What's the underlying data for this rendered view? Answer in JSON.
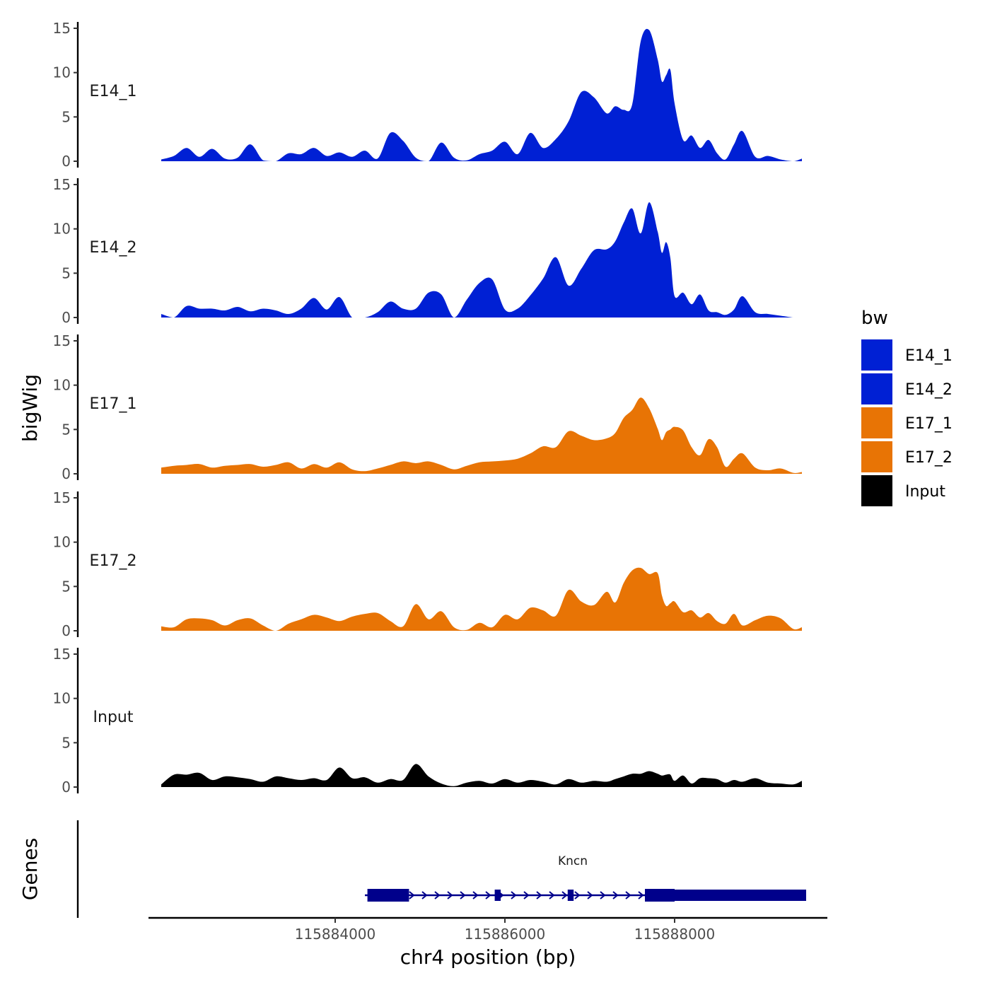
{
  "chart_data": {
    "type": "area",
    "xlabel": "chr4 position (bp)",
    "ylabel": "bigWig",
    "genes_label": "Genes",
    "xlim": [
      115881800,
      115889800
    ],
    "ylim": [
      0,
      15
    ],
    "yticks": [
      0,
      5,
      10,
      15
    ],
    "xticks": [
      {
        "value": 115884000,
        "label": "115884000"
      },
      {
        "value": 115886000,
        "label": "115886000"
      },
      {
        "value": 115888000,
        "label": "115888000"
      }
    ],
    "legend": {
      "title": "bw",
      "position": "right",
      "entries": [
        {
          "label": "E14_1",
          "color": "#0020D4"
        },
        {
          "label": "E14_2",
          "color": "#0020D4"
        },
        {
          "label": "E17_1",
          "color": "#E87405"
        },
        {
          "label": "E17_2",
          "color": "#E87405"
        },
        {
          "label": "Input",
          "color": "#000000"
        }
      ]
    },
    "series": [
      {
        "name": "E14_1",
        "color": "#0020D4",
        "x": [
          115881950,
          115882100,
          115882250,
          115882400,
          115882550,
          115882700,
          115882850,
          115883000,
          115883150,
          115883300,
          115883450,
          115883600,
          115883750,
          115883900,
          115884050,
          115884200,
          115884350,
          115884500,
          115884650,
          115884800,
          115884950,
          115885100,
          115885250,
          115885400,
          115885550,
          115885700,
          115885850,
          115886000,
          115886150,
          115886300,
          115886450,
          115886600,
          115886750,
          115886900,
          115887050,
          115887200,
          115887300,
          115887400,
          115887500,
          115887600,
          115887700,
          115887800,
          115887850,
          115887900,
          115887950,
          115888000,
          115888100,
          115888200,
          115888300,
          115888400,
          115888500,
          115888600,
          115888700,
          115888800,
          115888950,
          115889100,
          115889250,
          115889400,
          115889500
        ],
        "values": [
          0.2,
          0.6,
          1.5,
          0.5,
          1.4,
          0.3,
          0.4,
          1.9,
          0.1,
          0.0,
          0.9,
          0.8,
          1.5,
          0.6,
          1.0,
          0.5,
          1.2,
          0.3,
          3.2,
          2.3,
          0.4,
          0.0,
          2.1,
          0.4,
          0.1,
          0.8,
          1.2,
          2.2,
          0.8,
          3.2,
          1.5,
          2.5,
          4.5,
          7.8,
          7.2,
          5.4,
          6.2,
          5.8,
          6.4,
          13.5,
          14.8,
          11.5,
          9.0,
          9.7,
          10.3,
          6.5,
          2.4,
          2.9,
          1.5,
          2.4,
          0.9,
          0.2,
          1.9,
          3.4,
          0.5,
          0.6,
          0.2,
          0.0,
          0.3
        ]
      },
      {
        "name": "E14_2",
        "color": "#0020D4",
        "x": [
          115881950,
          115882100,
          115882250,
          115882400,
          115882550,
          115882700,
          115882850,
          115883000,
          115883150,
          115883300,
          115883450,
          115883600,
          115883750,
          115883900,
          115884050,
          115884200,
          115884350,
          115884500,
          115884650,
          115884800,
          115884950,
          115885100,
          115885250,
          115885400,
          115885550,
          115885700,
          115885850,
          115886000,
          115886150,
          115886300,
          115886450,
          115886600,
          115886750,
          115886900,
          115887050,
          115887200,
          115887300,
          115887400,
          115887500,
          115887600,
          115887700,
          115887800,
          115887850,
          115887900,
          115887950,
          115888000,
          115888100,
          115888200,
          115888300,
          115888400,
          115888500,
          115888600,
          115888700,
          115888800,
          115888950,
          115889100,
          115889250,
          115889400,
          115889500
        ],
        "values": [
          0.4,
          0.0,
          1.3,
          1.0,
          1.0,
          0.8,
          1.2,
          0.7,
          1.0,
          0.8,
          0.4,
          1.0,
          2.2,
          0.9,
          2.3,
          0.0,
          0.0,
          0.6,
          1.8,
          1.0,
          1.0,
          2.8,
          2.6,
          0.0,
          2.0,
          3.9,
          4.3,
          0.9,
          1.0,
          2.5,
          4.4,
          6.8,
          3.6,
          5.5,
          7.6,
          7.7,
          8.6,
          10.7,
          12.3,
          9.5,
          13.0,
          9.7,
          7.3,
          8.5,
          6.7,
          2.4,
          2.8,
          1.5,
          2.6,
          0.8,
          0.6,
          0.3,
          0.9,
          2.4,
          0.6,
          0.4,
          0.2,
          0.0,
          0.0
        ]
      },
      {
        "name": "E17_1",
        "color": "#E87405",
        "x": [
          115881950,
          115882100,
          115882250,
          115882400,
          115882550,
          115882700,
          115882850,
          115883000,
          115883150,
          115883300,
          115883450,
          115883600,
          115883750,
          115883900,
          115884050,
          115884200,
          115884350,
          115884500,
          115884650,
          115884800,
          115884950,
          115885100,
          115885250,
          115885400,
          115885550,
          115885700,
          115885850,
          115886000,
          115886150,
          115886300,
          115886450,
          115886600,
          115886750,
          115886900,
          115887050,
          115887200,
          115887300,
          115887400,
          115887500,
          115887600,
          115887700,
          115887800,
          115887850,
          115887900,
          115887950,
          115888000,
          115888100,
          115888200,
          115888300,
          115888400,
          115888500,
          115888600,
          115888700,
          115888800,
          115888950,
          115889100,
          115889250,
          115889400,
          115889500
        ],
        "values": [
          0.7,
          0.9,
          1.0,
          1.1,
          0.7,
          0.9,
          1.0,
          1.1,
          0.8,
          1.0,
          1.3,
          0.6,
          1.1,
          0.7,
          1.3,
          0.5,
          0.3,
          0.6,
          1.0,
          1.4,
          1.2,
          1.4,
          1.0,
          0.5,
          0.9,
          1.3,
          1.4,
          1.5,
          1.7,
          2.3,
          3.1,
          3.0,
          4.8,
          4.3,
          3.8,
          4.0,
          4.6,
          6.3,
          7.2,
          8.6,
          7.4,
          5.1,
          3.8,
          4.7,
          5.0,
          5.3,
          4.9,
          3.0,
          2.1,
          3.9,
          3.0,
          0.8,
          1.7,
          2.3,
          0.7,
          0.4,
          0.6,
          0.1,
          0.2
        ]
      },
      {
        "name": "E17_2",
        "color": "#E87405",
        "x": [
          115881950,
          115882100,
          115882250,
          115882400,
          115882550,
          115882700,
          115882850,
          115883000,
          115883150,
          115883300,
          115883450,
          115883600,
          115883750,
          115883900,
          115884050,
          115884200,
          115884350,
          115884500,
          115884650,
          115884800,
          115884950,
          115885100,
          115885250,
          115885400,
          115885550,
          115885700,
          115885850,
          115886000,
          115886150,
          115886300,
          115886450,
          115886600,
          115886750,
          115886900,
          115887050,
          115887200,
          115887300,
          115887400,
          115887500,
          115887600,
          115887700,
          115887800,
          115887850,
          115887900,
          115887950,
          115888000,
          115888100,
          115888200,
          115888300,
          115888400,
          115888500,
          115888600,
          115888700,
          115888800,
          115888950,
          115889100,
          115889250,
          115889400,
          115889500
        ],
        "values": [
          0.5,
          0.4,
          1.3,
          1.4,
          1.2,
          0.6,
          1.2,
          1.4,
          0.6,
          0.0,
          0.8,
          1.3,
          1.8,
          1.5,
          1.1,
          1.6,
          1.9,
          2.0,
          1.1,
          0.5,
          3.0,
          1.3,
          2.2,
          0.4,
          0.1,
          0.9,
          0.4,
          1.8,
          1.3,
          2.6,
          2.3,
          1.7,
          4.6,
          3.3,
          2.9,
          4.4,
          3.2,
          5.4,
          6.8,
          7.1,
          6.4,
          6.5,
          4.0,
          2.8,
          3.1,
          3.3,
          2.1,
          2.3,
          1.5,
          2.0,
          1.1,
          0.8,
          1.9,
          0.6,
          1.2,
          1.7,
          1.4,
          0.2,
          0.4
        ]
      },
      {
        "name": "Input",
        "color": "#000000",
        "x": [
          115881950,
          115882100,
          115882250,
          115882400,
          115882550,
          115882700,
          115882850,
          115883000,
          115883150,
          115883300,
          115883450,
          115883600,
          115883750,
          115883900,
          115884050,
          115884200,
          115884350,
          115884500,
          115884650,
          115884800,
          115884950,
          115885100,
          115885250,
          115885400,
          115885550,
          115885700,
          115885850,
          115886000,
          115886150,
          115886300,
          115886450,
          115886600,
          115886750,
          115886900,
          115887050,
          115887200,
          115887300,
          115887400,
          115887500,
          115887600,
          115887700,
          115887800,
          115887850,
          115887900,
          115887950,
          115888000,
          115888100,
          115888200,
          115888300,
          115888400,
          115888500,
          115888600,
          115888700,
          115888800,
          115888950,
          115889100,
          115889250,
          115889400,
          115889500
        ],
        "values": [
          0.3,
          1.4,
          1.4,
          1.6,
          0.8,
          1.2,
          1.1,
          0.9,
          0.6,
          1.2,
          1.0,
          0.8,
          1.0,
          0.8,
          2.2,
          1.0,
          1.1,
          0.5,
          0.9,
          0.8,
          2.6,
          1.2,
          0.4,
          0.1,
          0.5,
          0.7,
          0.4,
          0.9,
          0.5,
          0.8,
          0.6,
          0.3,
          0.9,
          0.5,
          0.7,
          0.6,
          0.9,
          1.2,
          1.5,
          1.5,
          1.8,
          1.5,
          1.3,
          1.4,
          1.4,
          0.7,
          1.3,
          0.4,
          1.0,
          1.0,
          0.9,
          0.5,
          0.8,
          0.6,
          1.0,
          0.5,
          0.4,
          0.3,
          0.7
        ]
      }
    ],
    "gene": {
      "name": "Kncn",
      "strand": "+",
      "start": 115884350,
      "end": 115889550,
      "exons": [
        {
          "start": 115884380,
          "end": 115884870,
          "kind": "utr"
        },
        {
          "start": 115885880,
          "end": 115885950,
          "kind": "cds"
        },
        {
          "start": 115886740,
          "end": 115886810,
          "kind": "cds"
        },
        {
          "start": 115887650,
          "end": 115888000,
          "kind": "utr"
        },
        {
          "start": 115888000,
          "end": 115889550,
          "kind": "cds"
        }
      ]
    }
  }
}
